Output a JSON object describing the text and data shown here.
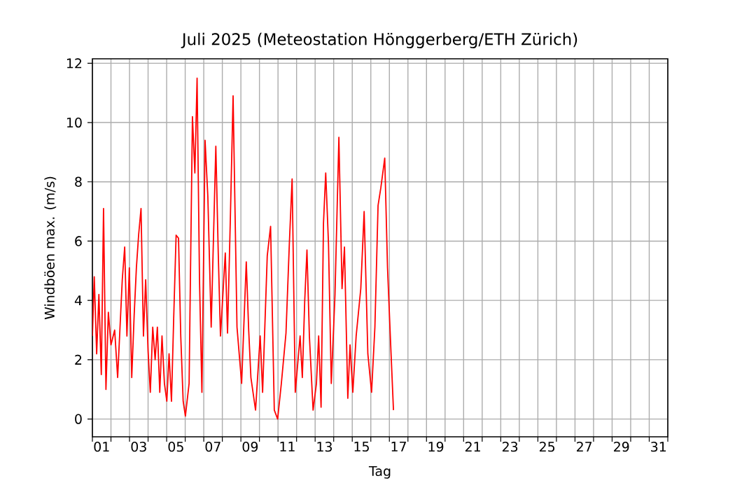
{
  "chart_data": {
    "type": "line",
    "title": "Juli 2025  (Meteostation Hönggerberg/ETH Zürich)",
    "xlabel": "Tag",
    "ylabel": "Windböen max. (m/s)",
    "xlim": [
      1,
      32
    ],
    "ylim": [
      -0.6,
      12.15
    ],
    "yticks": [
      0,
      2,
      4,
      6,
      8,
      10,
      12
    ],
    "xticks": [
      {
        "value": 1,
        "label": null
      },
      {
        "value": 2,
        "label": null
      },
      {
        "value": 3,
        "label": null
      },
      {
        "value": 4,
        "label": null
      },
      {
        "value": 5,
        "label": null
      },
      {
        "value": 6,
        "label": null
      },
      {
        "value": 7,
        "label": null
      },
      {
        "value": 8,
        "label": null
      },
      {
        "value": 9,
        "label": null
      },
      {
        "value": 10,
        "label": null
      },
      {
        "value": 11,
        "label": null
      },
      {
        "value": 12,
        "label": null
      },
      {
        "value": 13,
        "label": null
      },
      {
        "value": 14,
        "label": null
      },
      {
        "value": 15,
        "label": null
      },
      {
        "value": 16,
        "label": null
      },
      {
        "value": 17,
        "label": null
      },
      {
        "value": 18,
        "label": null
      },
      {
        "value": 19,
        "label": null
      },
      {
        "value": 20,
        "label": null
      },
      {
        "value": 21,
        "label": null
      },
      {
        "value": 22,
        "label": null
      },
      {
        "value": 23,
        "label": null
      },
      {
        "value": 24,
        "label": null
      },
      {
        "value": 25,
        "label": null
      },
      {
        "value": 26,
        "label": null
      },
      {
        "value": 27,
        "label": null
      },
      {
        "value": 28,
        "label": null
      },
      {
        "value": 29,
        "label": null
      },
      {
        "value": 30,
        "label": null
      },
      {
        "value": 31,
        "label": null
      },
      {
        "value": 32,
        "label": null
      },
      {
        "value": 1.5,
        "label": "01"
      },
      {
        "value": 3.5,
        "label": "03"
      },
      {
        "value": 5.5,
        "label": "05"
      },
      {
        "value": 7.5,
        "label": "07"
      },
      {
        "value": 9.5,
        "label": "09"
      },
      {
        "value": 11.5,
        "label": "11"
      },
      {
        "value": 13.5,
        "label": "13"
      },
      {
        "value": 15.5,
        "label": "15"
      },
      {
        "value": 17.5,
        "label": "17"
      },
      {
        "value": 19.5,
        "label": "19"
      },
      {
        "value": 21.5,
        "label": "21"
      },
      {
        "value": 23.5,
        "label": "23"
      },
      {
        "value": 25.5,
        "label": "25"
      },
      {
        "value": 27.5,
        "label": "27"
      },
      {
        "value": 29.5,
        "label": "29"
      },
      {
        "value": 31.5,
        "label": "31"
      }
    ],
    "grid": true,
    "marker": "none",
    "line_style": "solid",
    "series": [
      {
        "color": "#ff0000",
        "x": [
          1.0,
          1.1,
          1.23,
          1.35,
          1.48,
          1.6,
          1.73,
          1.86,
          2.0,
          2.2,
          2.36,
          2.61,
          2.74,
          2.86,
          2.99,
          3.12,
          3.25,
          3.37,
          3.49,
          3.62,
          3.75,
          3.87,
          4.0,
          4.12,
          4.25,
          4.38,
          4.5,
          4.63,
          4.75,
          4.88,
          5.01,
          5.13,
          5.26,
          5.38,
          5.51,
          5.64,
          5.76,
          5.89,
          6.01,
          6.21,
          6.39,
          6.52,
          6.64,
          6.77,
          6.9,
          7.07,
          7.22,
          7.4,
          7.65,
          7.78,
          7.9,
          8.16,
          8.28,
          8.43,
          8.58,
          8.79,
          9.04,
          9.29,
          9.42,
          9.54,
          9.79,
          10.04,
          10.17,
          10.42,
          10.6,
          10.8,
          10.98,
          11.18,
          11.43,
          11.61,
          11.76,
          11.93,
          12.19,
          12.31,
          12.44,
          12.56,
          12.69,
          12.89,
          13.07,
          13.19,
          13.32,
          13.45,
          13.57,
          13.72,
          13.87,
          14.07,
          14.28,
          14.45,
          14.58,
          14.76,
          14.88,
          15.03,
          15.21,
          15.46,
          15.64,
          15.84,
          16.04,
          16.22,
          16.39,
          16.54,
          16.75,
          16.9,
          17.05,
          17.22
        ],
        "values": [
          2.8,
          4.8,
          2.2,
          4.2,
          1.5,
          7.1,
          1.0,
          3.6,
          2.5,
          3.0,
          1.4,
          4.7,
          5.8,
          2.8,
          5.1,
          1.4,
          3.5,
          5.1,
          6.2,
          7.1,
          2.8,
          4.7,
          2.3,
          0.9,
          3.1,
          2.0,
          3.1,
          0.9,
          2.8,
          1.2,
          0.6,
          2.2,
          0.6,
          3.4,
          6.2,
          6.1,
          2.8,
          0.6,
          0.1,
          1.2,
          10.2,
          8.3,
          11.5,
          4.7,
          0.9,
          9.4,
          7.5,
          3.1,
          9.2,
          5.6,
          2.8,
          5.6,
          2.9,
          6.7,
          10.9,
          3.1,
          1.2,
          5.3,
          3.0,
          1.4,
          0.3,
          2.8,
          0.9,
          5.5,
          6.5,
          0.3,
          0.0,
          1.2,
          2.9,
          5.9,
          8.1,
          0.9,
          2.8,
          1.4,
          4.0,
          5.7,
          2.8,
          0.3,
          1.2,
          2.8,
          0.4,
          6.6,
          8.3,
          5.9,
          1.2,
          4.2,
          9.5,
          4.4,
          5.8,
          0.7,
          2.5,
          0.9,
          2.8,
          4.4,
          7.0,
          2.2,
          0.9,
          3.1,
          7.2,
          7.8,
          8.8,
          5.1,
          2.8,
          0.3
        ]
      }
    ]
  }
}
